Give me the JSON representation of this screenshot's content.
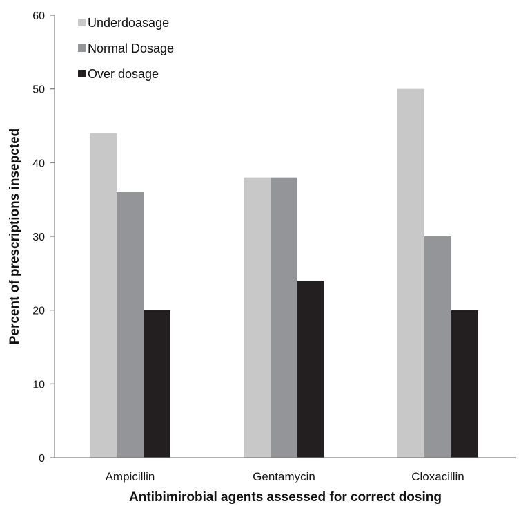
{
  "chart_data": {
    "type": "bar",
    "title": "",
    "xlabel": "Antibimirobial agents assessed for correct dosing",
    "ylabel": "Percent of prescriptions insepcted",
    "categories": [
      "Ampicillin",
      "Gentamycin",
      "Cloxacillin"
    ],
    "ylim": [
      0,
      60
    ],
    "yticks": [
      0,
      10,
      20,
      30,
      40,
      50,
      60
    ],
    "grid": false,
    "legend_position": "top-left",
    "series": [
      {
        "name": "Underdoasage",
        "values": [
          44,
          38,
          50
        ],
        "color": "#c8c8c8"
      },
      {
        "name": "Normal Dosage",
        "values": [
          36,
          38,
          30
        ],
        "color": "#939598"
      },
      {
        "name": "Over dosage",
        "values": [
          20,
          24,
          20
        ],
        "color": "#231f20"
      }
    ]
  }
}
